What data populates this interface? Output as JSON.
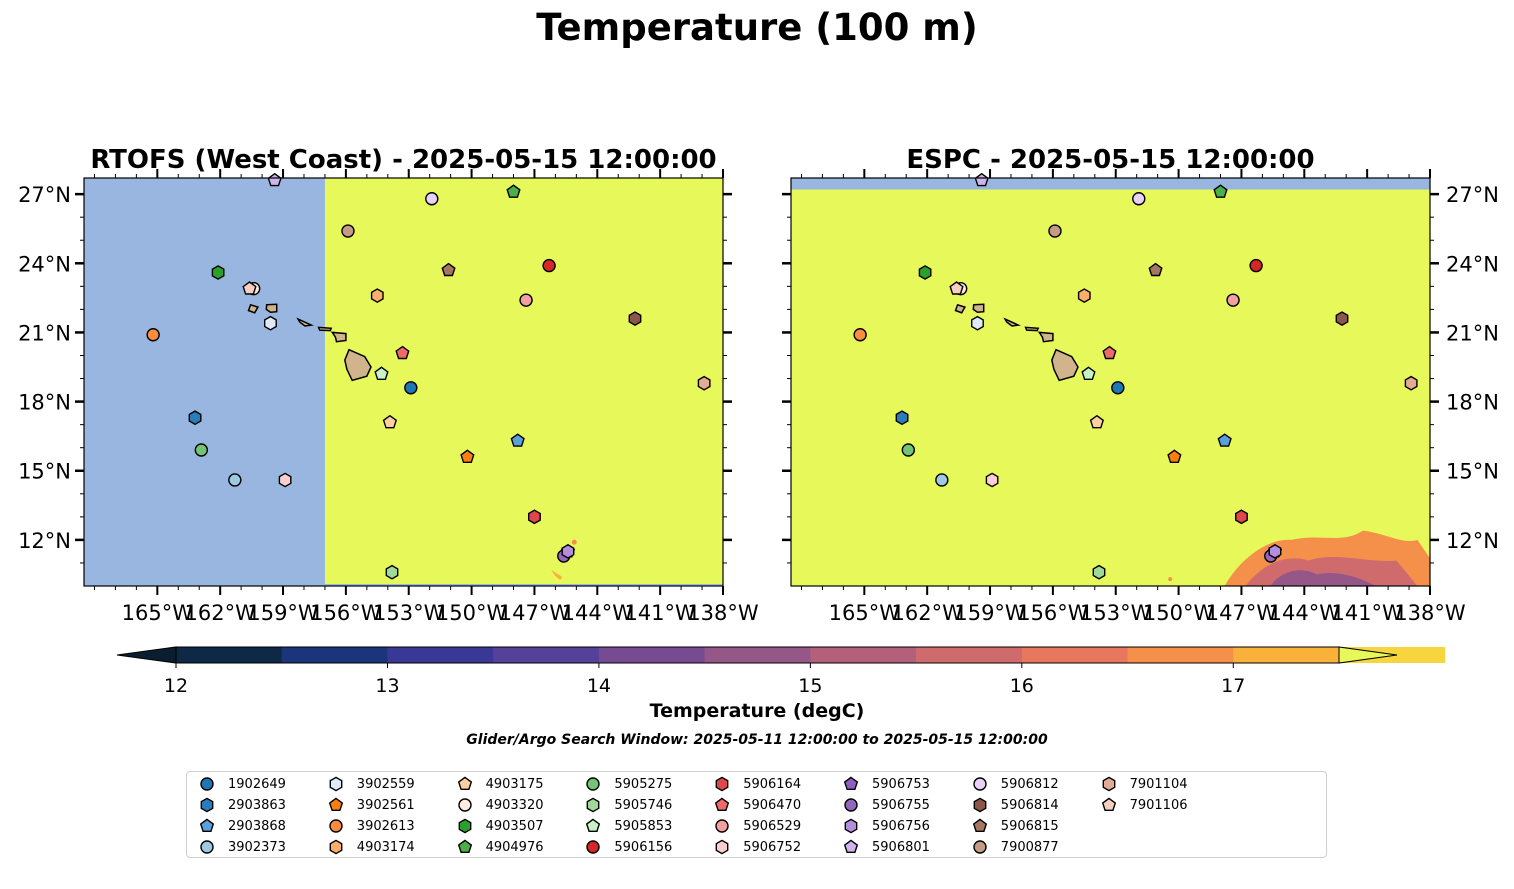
{
  "title": "Temperature (100 m)",
  "panels": [
    {
      "title": "RTOFS (West Coast) - 2025-05-15 12:00:00",
      "field": "rtofs"
    },
    {
      "title": "ESPC - 2025-05-15 12:00:00",
      "field": "espc"
    }
  ],
  "map": {
    "lon_range": [
      -168.5,
      -138.0
    ],
    "lat_range": [
      10.0,
      27.7
    ],
    "lon_ticks": [
      -165,
      -162,
      -159,
      -156,
      -153,
      -150,
      -147,
      -144,
      -141,
      -138
    ],
    "lon_tick_labels": [
      "165°W",
      "162°W",
      "159°W",
      "156°W",
      "153°W",
      "150°W",
      "147°W",
      "144°W",
      "141°W",
      "138°W"
    ],
    "lat_ticks": [
      12,
      15,
      18,
      21,
      24,
      27
    ],
    "lat_tick_labels": [
      "12°N",
      "15°N",
      "18°N",
      "21°N",
      "24°N",
      "27°N"
    ],
    "land_color": "#d2b48c",
    "nodata_color": "#98b6e0"
  },
  "colorbar": {
    "label": "Temperature (degC)",
    "min": 11.75,
    "max": 17.75,
    "tick_values": [
      12,
      13,
      14,
      15,
      16,
      17
    ],
    "tick_labels": [
      "12",
      "13",
      "14",
      "15",
      "16",
      "17"
    ],
    "bins": [
      12.0,
      12.5,
      13.0,
      13.5,
      14.0,
      14.5,
      15.0,
      15.5,
      16.0,
      16.5,
      17.0,
      17.5
    ],
    "colors": [
      "#0d2945",
      "#1a357a",
      "#3a3896",
      "#55419a",
      "#764b92",
      "#955688",
      "#b3617b",
      "#cf6b6d",
      "#e8775e",
      "#f5904a",
      "#f9b13b",
      "#f6d53f"
    ],
    "under_color": "#0a1e30",
    "over_color": "#e6f85a"
  },
  "search_window": "Glider/Argo Search Window: 2025-05-11 12:00:00 to 2025-05-15 12:00:00",
  "floats": [
    {
      "id": "1902649",
      "marker": "circle",
      "color": "#1f77b4",
      "lon": -152.9,
      "lat": 18.6
    },
    {
      "id": "2903863",
      "marker": "hexagon",
      "color": "#2a7db8",
      "lon": -163.2,
      "lat": 17.3
    },
    {
      "id": "2903868",
      "marker": "pentagon",
      "color": "#5b9fdb",
      "lon": -147.8,
      "lat": 16.3
    },
    {
      "id": "3902373",
      "marker": "circle",
      "color": "#9ecae1",
      "lon": -161.3,
      "lat": 14.6
    },
    {
      "id": "3902559",
      "marker": "hexagon",
      "color": "#deebf7",
      "lon": -159.6,
      "lat": 21.4
    },
    {
      "id": "3902561",
      "marker": "pentagon",
      "color": "#ff7f0e",
      "lon": -150.2,
      "lat": 15.6
    },
    {
      "id": "3902613",
      "marker": "circle",
      "color": "#fd8d3c",
      "lon": -165.2,
      "lat": 20.9
    },
    {
      "id": "4903174",
      "marker": "hexagon",
      "color": "#fdae6b",
      "lon": -154.5,
      "lat": 22.6
    },
    {
      "id": "4903175",
      "marker": "pentagon",
      "color": "#fdd0a2",
      "lon": -153.9,
      "lat": 17.1
    },
    {
      "id": "4903320",
      "marker": "circle",
      "color": "#feedde",
      "lon": -160.4,
      "lat": 22.9
    },
    {
      "id": "4903507",
      "marker": "hexagon",
      "color": "#2ca02c",
      "lon": -162.1,
      "lat": 23.6
    },
    {
      "id": "4904976",
      "marker": "pentagon",
      "color": "#4daf4a",
      "lon": -148.0,
      "lat": 27.1
    },
    {
      "id": "5905275",
      "marker": "circle",
      "color": "#74c476",
      "lon": -162.9,
      "lat": 15.9
    },
    {
      "id": "5905746",
      "marker": "hexagon",
      "color": "#a1d99b",
      "lon": -153.8,
      "lat": 10.6
    },
    {
      "id": "5905853",
      "marker": "pentagon",
      "color": "#c7f2c7",
      "lon": -154.3,
      "lat": 19.2
    },
    {
      "id": "5906156",
      "marker": "circle",
      "color": "#d62728",
      "lon": -146.3,
      "lat": 23.9
    },
    {
      "id": "5906164",
      "marker": "hexagon",
      "color": "#e0474c",
      "lon": -147.0,
      "lat": 13.0
    },
    {
      "id": "5906470",
      "marker": "pentagon",
      "color": "#ef6b6b",
      "lon": -153.3,
      "lat": 20.1
    },
    {
      "id": "5906529",
      "marker": "circle",
      "color": "#f4a0a0",
      "lon": -147.4,
      "lat": 22.4
    },
    {
      "id": "5906752",
      "marker": "hexagon",
      "color": "#fbcfcf",
      "lon": -158.9,
      "lat": 14.6
    },
    {
      "id": "5906753",
      "marker": "pentagon",
      "color": "#8f5fc2",
      "lon": -145.4,
      "lat": 11.5
    },
    {
      "id": "5906755",
      "marker": "circle",
      "color": "#9467bd",
      "lon": -145.6,
      "lat": 11.3
    },
    {
      "id": "5906756",
      "marker": "hexagon",
      "color": "#b48ddc",
      "lon": -145.4,
      "lat": 11.5
    },
    {
      "id": "5906801",
      "marker": "pentagon",
      "color": "#cfb3ec",
      "lon": -159.4,
      "lat": 27.6
    },
    {
      "id": "5906812",
      "marker": "circle",
      "color": "#e8d2f7",
      "lon": -151.9,
      "lat": 26.8
    },
    {
      "id": "5906814",
      "marker": "hexagon",
      "color": "#8c564b",
      "lon": -142.2,
      "lat": 21.6
    },
    {
      "id": "5906815",
      "marker": "pentagon",
      "color": "#a57760",
      "lon": -151.1,
      "lat": 23.7
    },
    {
      "id": "7900877",
      "marker": "circle",
      "color": "#c49c86",
      "lon": -155.9,
      "lat": 25.4
    },
    {
      "id": "7901104",
      "marker": "hexagon",
      "color": "#e3aa94",
      "lon": -138.9,
      "lat": 18.8
    },
    {
      "id": "7901106",
      "marker": "pentagon",
      "color": "#f6cfc0",
      "lon": -160.6,
      "lat": 22.9
    }
  ]
}
